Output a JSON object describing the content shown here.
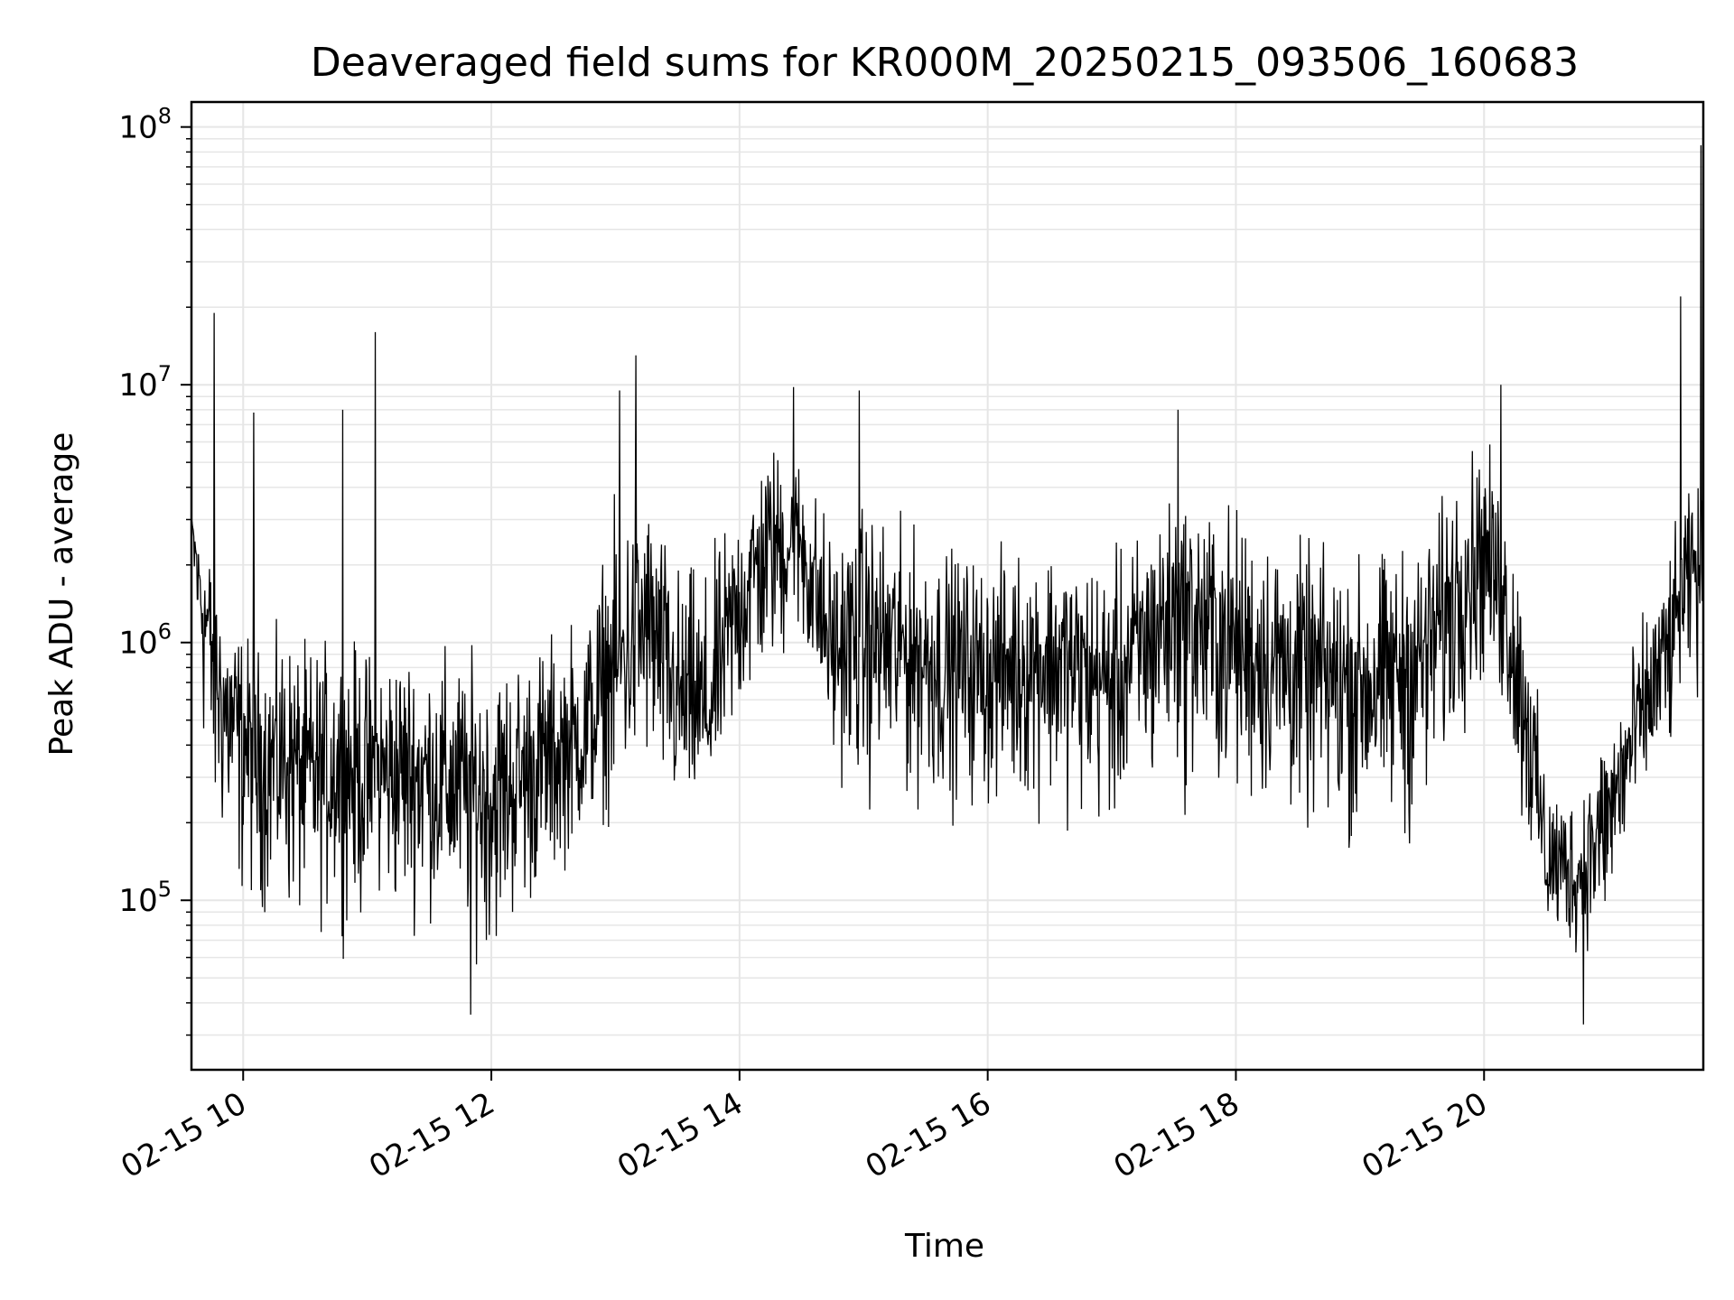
{
  "chart_data": {
    "type": "line",
    "title": "Deaveraged field sums for KR000M_20250215_093506_160683",
    "xlabel": "Time",
    "ylabel": "Peak ADU - average",
    "yscale": "log",
    "ylim": [
      22000,
      125000000
    ],
    "xlim": [
      "2025-02-15 09:35",
      "2025-02-15 21:46"
    ],
    "x_ticks": [
      {
        "value": "2025-02-15 10:00",
        "label": "02-15 10"
      },
      {
        "value": "2025-02-15 12:00",
        "label": "02-15 12"
      },
      {
        "value": "2025-02-15 14:00",
        "label": "02-15 14"
      },
      {
        "value": "2025-02-15 16:00",
        "label": "02-15 16"
      },
      {
        "value": "2025-02-15 18:00",
        "label": "02-15 18"
      },
      {
        "value": "2025-02-15 20:00",
        "label": "02-15 20"
      }
    ],
    "y_ticks": [
      {
        "value": 100000,
        "base": "10",
        "exp": "5"
      },
      {
        "value": 1000000,
        "base": "10",
        "exp": "6"
      },
      {
        "value": 10000000,
        "base": "10",
        "exp": "7"
      },
      {
        "value": 100000000,
        "base": "10",
        "exp": "8"
      }
    ],
    "grid": true,
    "line_color": "#000000",
    "grid_color": "#e6e6e6",
    "series": [
      {
        "x": [
          "2025-02-15 09:35",
          "2025-02-15 09:40",
          "2025-02-15 09:45",
          "2025-02-15 09:50",
          "2025-02-15 09:55",
          "2025-02-15 10:00",
          "2025-02-15 10:10",
          "2025-02-15 10:20",
          "2025-02-15 10:30",
          "2025-02-15 10:45",
          "2025-02-15 11:00",
          "2025-02-15 11:15",
          "2025-02-15 11:30",
          "2025-02-15 11:45",
          "2025-02-15 12:00",
          "2025-02-15 12:15",
          "2025-02-15 12:30",
          "2025-02-15 12:45",
          "2025-02-15 13:00",
          "2025-02-15 13:15",
          "2025-02-15 13:30",
          "2025-02-15 13:45",
          "2025-02-15 14:00",
          "2025-02-15 14:15",
          "2025-02-15 14:30",
          "2025-02-15 14:45",
          "2025-02-15 15:00",
          "2025-02-15 15:30",
          "2025-02-15 16:00",
          "2025-02-15 16:30",
          "2025-02-15 17:00",
          "2025-02-15 17:30",
          "2025-02-15 18:00",
          "2025-02-15 18:30",
          "2025-02-15 19:00",
          "2025-02-15 19:30",
          "2025-02-15 19:50",
          "2025-02-15 20:00",
          "2025-02-15 20:10",
          "2025-02-15 20:20",
          "2025-02-15 20:30",
          "2025-02-15 20:45",
          "2025-02-15 21:00",
          "2025-02-15 21:15",
          "2025-02-15 21:30",
          "2025-02-15 21:40",
          "2025-02-15 21:46"
        ],
        "y": [
          3000000,
          1500000,
          1000000,
          600000,
          500000,
          450000,
          350000,
          400000,
          300000,
          350000,
          300000,
          320000,
          300000,
          280000,
          250000,
          300000,
          350000,
          400000,
          800000,
          1200000,
          600000,
          500000,
          1500000,
          2500000,
          2500000,
          900000,
          1100000,
          900000,
          800000,
          900000,
          700000,
          1500000,
          1000000,
          800000,
          700000,
          900000,
          2000000,
          2500000,
          1500000,
          600000,
          150000,
          120000,
          200000,
          500000,
          1000000,
          2000000,
          2000000
        ],
        "band_low": [
          1000000,
          300000,
          80000,
          100000,
          70000,
          60000,
          60000,
          50000,
          50000,
          55000,
          50000,
          55000,
          60000,
          50000,
          40000,
          60000,
          80000,
          150000,
          150000,
          200000,
          120000,
          200000,
          300000,
          500000,
          600000,
          250000,
          150000,
          150000,
          150000,
          150000,
          120000,
          150000,
          150000,
          120000,
          100000,
          100000,
          300000,
          400000,
          300000,
          100000,
          50000,
          50000,
          60000,
          150000,
          250000,
          400000,
          400000
        ],
        "band_high": [
          3000000,
          2500000,
          3500000,
          2000000,
          1800000,
          1500000,
          1300000,
          1500000,
          1400000,
          1500000,
          1400000,
          1500000,
          1400000,
          1300000,
          1300000,
          1400000,
          1600000,
          2000000,
          5000000,
          6000000,
          3000000,
          3000000,
          5000000,
          8000000,
          7000000,
          4000000,
          5000000,
          3500000,
          3000000,
          3500000,
          3000000,
          5000000,
          5000000,
          3500000,
          3000000,
          3500000,
          7000000,
          8000000,
          5000000,
          2000000,
          400000,
          350000,
          800000,
          1500000,
          3000000,
          5000000,
          5000000
        ],
        "spikes": [
          {
            "x": "2025-02-15 09:46",
            "y": 19000000
          },
          {
            "x": "2025-02-15 10:05",
            "y": 7800000
          },
          {
            "x": "2025-02-15 10:48",
            "y": 8000000
          },
          {
            "x": "2025-02-15 11:04",
            "y": 16000000
          },
          {
            "x": "2025-02-15 11:50",
            "y": 36000
          },
          {
            "x": "2025-02-15 13:02",
            "y": 9500000
          },
          {
            "x": "2025-02-15 13:10",
            "y": 13000000
          },
          {
            "x": "2025-02-15 14:26",
            "y": 9800000
          },
          {
            "x": "2025-02-15 14:58",
            "y": 9500000
          },
          {
            "x": "2025-02-15 17:32",
            "y": 8000000
          },
          {
            "x": "2025-02-15 20:08",
            "y": 10000000
          },
          {
            "x": "2025-02-15 20:48",
            "y": 33000
          },
          {
            "x": "2025-02-15 21:35",
            "y": 22000000
          },
          {
            "x": "2025-02-15 21:45",
            "y": 85000000
          }
        ]
      }
    ]
  }
}
